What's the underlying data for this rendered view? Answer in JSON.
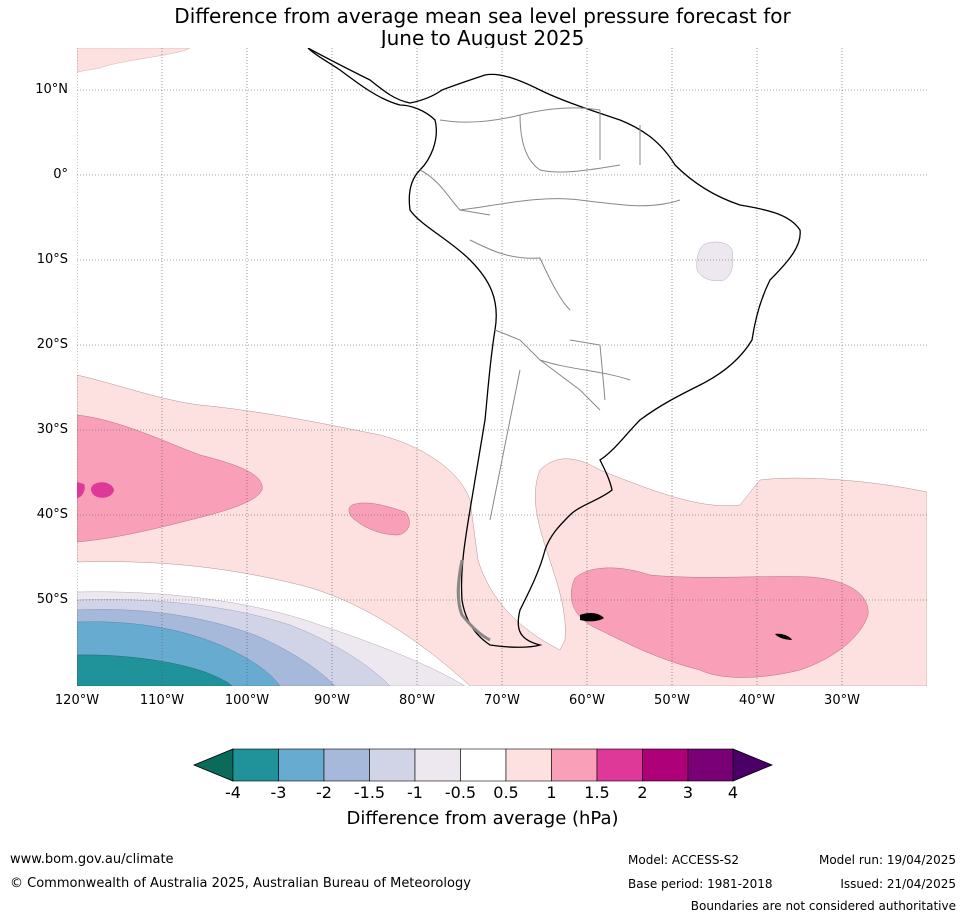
{
  "title_line1": "Difference from average mean sea level pressure forecast for",
  "title_line2": "June to August 2025",
  "latitude_labels": [
    "10°N",
    "0°",
    "10°S",
    "20°S",
    "30°S",
    "40°S",
    "50°S"
  ],
  "longitude_labels": [
    "120°W",
    "110°W",
    "100°W",
    "90°W",
    "80°W",
    "70°W",
    "60°W",
    "50°W",
    "40°W",
    "30°W"
  ],
  "colorbar": {
    "ticks": [
      "-4",
      "-3",
      "-2",
      "-1.5",
      "-1",
      "-0.5",
      "0.5",
      "1",
      "1.5",
      "2",
      "3",
      "4"
    ],
    "colors": [
      "#0b6b5a",
      "#1f9399",
      "#67abd0",
      "#a6b9da",
      "#d1d3e6",
      "#ede8ef",
      "#ffffff",
      "#fde0e0",
      "#f9a0b8",
      "#de3898",
      "#ae0079",
      "#7a0076",
      "#4b0068"
    ],
    "title": "Difference from average (hPa)"
  },
  "footer": {
    "website": "www.bom.gov.au/climate",
    "copyright": "© Commonwealth of Australia 2025, Australian Bureau of Meteorology",
    "model": "Model: ACCESS-S2",
    "base_period": "Base period: 1981-2018",
    "model_run": "Model run: 19/04/2025",
    "issued": "Issued: 21/04/2025",
    "boundaries_note": "Boundaries are not considered authoritative"
  }
}
